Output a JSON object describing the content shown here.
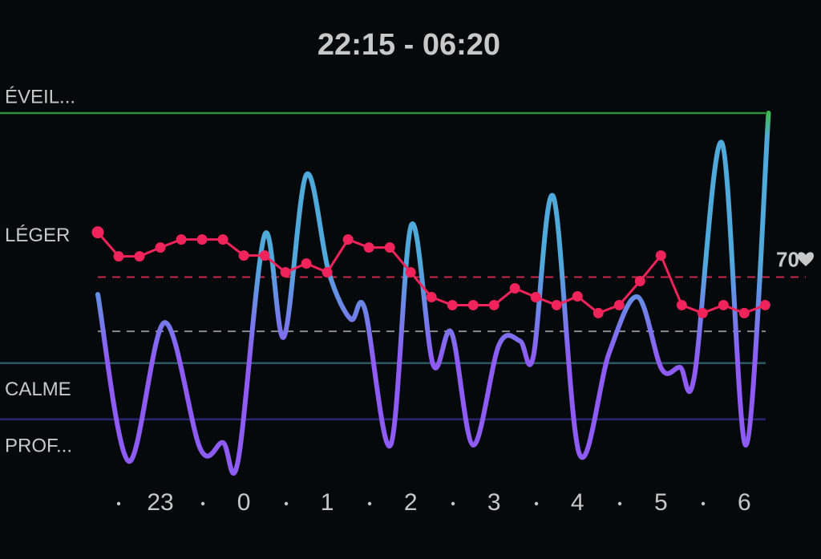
{
  "chart_data": {
    "type": "line",
    "title": "22:15 - 06:20",
    "xlim": [
      22.25,
      30.333
    ],
    "xticks": [
      23,
      {
        "value": 24,
        "label": "0"
      },
      {
        "value": 25,
        "label": "1"
      },
      {
        "value": 26,
        "label": "2"
      },
      {
        "value": 27,
        "label": "3"
      },
      {
        "value": 28,
        "label": "4"
      },
      {
        "value": 29,
        "label": "5"
      },
      {
        "value": 30,
        "label": "6"
      }
    ],
    "ylim": [
      0,
      100
    ],
    "yticks": [
      {
        "value": 100,
        "label": "ÉVEIL..."
      },
      {
        "value": 65,
        "label": "LÉGER"
      },
      {
        "value": 29,
        "label": "CALME"
      },
      {
        "value": 13,
        "label": "PROF..."
      }
    ],
    "grid_colors": [
      "#2f8f3a",
      null,
      "#2c5866",
      "#2a2672"
    ],
    "reference": 38,
    "reference_color": "#8a8a8a",
    "y2lim": [
      46.5,
      90.5
    ],
    "y2ticks": [
      70
    ],
    "y2_color": "#c8284e",
    "series": [
      {
        "gradient": [
          "#8e5cf4",
          "#4faadb",
          "#3dbb4a"
        ],
        "x": [
          22.25,
          22.62,
          23.05,
          23.48,
          23.75,
          23.93,
          24.25,
          24.48,
          24.75,
          25.02,
          25.28,
          25.45,
          25.76,
          26.01,
          26.27,
          26.49,
          26.75,
          27.06,
          27.31,
          27.47,
          27.71,
          28.02,
          28.38,
          28.72,
          29.01,
          29.23,
          29.4,
          29.73,
          30.02,
          30.29
        ],
        "values": [
          48.5,
          1.1,
          40.5,
          4.6,
          6.4,
          1.1,
          65.4,
          36.4,
          82.5,
          54.7,
          41.5,
          44.4,
          5.7,
          68.3,
          28.5,
          37.6,
          5.7,
          34.2,
          35.3,
          30.8,
          76.3,
          3.4,
          31.9,
          47.8,
          27.3,
          27.8,
          25.1,
          91.6,
          5.7,
          100
        ]
      },
      {
        "axis": "y2",
        "color": "#f0245a",
        "x": [
          22.25,
          22.5,
          22.75,
          23,
          23.25,
          23.5,
          23.75,
          24,
          24.25,
          24.5,
          24.75,
          25,
          25.25,
          25.5,
          25.75,
          26,
          26.25,
          26.5,
          26.75,
          27,
          27.25,
          27.5,
          27.75,
          28,
          28.25,
          28.5,
          28.75,
          29,
          29.25,
          29.5,
          29.75,
          30,
          30.25
        ],
        "values": [
          75.6,
          72.6,
          72.6,
          73.7,
          74.7,
          74.7,
          74.7,
          72.7,
          72.7,
          70.6,
          71.7,
          70.6,
          74.7,
          73.7,
          73.7,
          70.6,
          67.5,
          66.5,
          66.5,
          66.5,
          68.6,
          67.5,
          66.5,
          67.6,
          65.5,
          66.5,
          69.5,
          72.7,
          66.5,
          65.5,
          66.5,
          65.5,
          66.5
        ]
      }
    ]
  }
}
